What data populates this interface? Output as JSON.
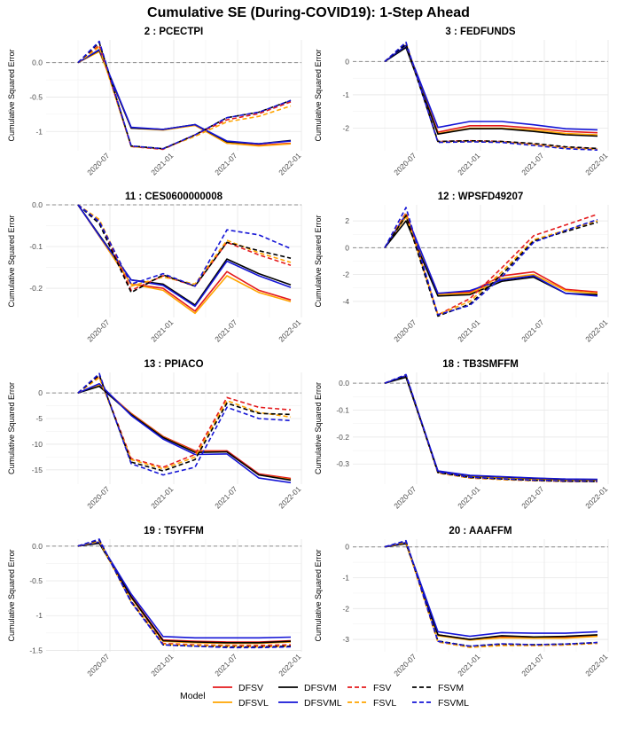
{
  "title": "Cumulative SE (During-COVID19): 1-Step Ahead",
  "ylabel": "Cumulative Squared Error",
  "legend_title": "Model",
  "models": [
    {
      "name": "DFSV",
      "color": "#e41a1c",
      "dash": false
    },
    {
      "name": "DFSVL",
      "color": "#ffa500",
      "dash": false
    },
    {
      "name": "DFSVM",
      "color": "#000000",
      "dash": false
    },
    {
      "name": "DFSVML",
      "color": "#1515d6",
      "dash": false
    },
    {
      "name": "FSV",
      "color": "#e41a1c",
      "dash": true
    },
    {
      "name": "FSVL",
      "color": "#ffa500",
      "dash": true
    },
    {
      "name": "FSVM",
      "color": "#000000",
      "dash": true
    },
    {
      "name": "FSVML",
      "color": "#1515d6",
      "dash": true
    }
  ],
  "chart_data": [
    {
      "type": "line",
      "title": "2 : PCECTPI",
      "x": [
        "2020-04",
        "2020-06",
        "2020-09",
        "2020-12",
        "2021-03",
        "2021-06",
        "2021-09",
        "2021-12"
      ],
      "xticks": [
        "2020-07",
        "2021-01",
        "2021-07",
        "2022-01"
      ],
      "yticks": [
        0.0,
        -0.5,
        -1.0
      ],
      "ylim": [
        -1.28,
        0.33
      ],
      "series": [
        {
          "name": "DFSV",
          "values": [
            0,
            0.17,
            -0.95,
            -0.97,
            -0.91,
            -1.17,
            -1.2,
            -1.17
          ]
        },
        {
          "name": "DFSVL",
          "values": [
            0,
            0.16,
            -0.95,
            -0.98,
            -0.91,
            -1.17,
            -1.21,
            -1.18
          ]
        },
        {
          "name": "DFSVM",
          "values": [
            0,
            0.18,
            -0.95,
            -0.97,
            -0.9,
            -1.15,
            -1.18,
            -1.13
          ]
        },
        {
          "name": "DFSVML",
          "values": [
            0,
            0.19,
            -0.94,
            -0.97,
            -0.9,
            -1.14,
            -1.18,
            -1.14
          ]
        },
        {
          "name": "FSV",
          "values": [
            0,
            0.25,
            -1.22,
            -1.26,
            -1.05,
            -0.83,
            -0.74,
            -0.57
          ]
        },
        {
          "name": "FSVL",
          "values": [
            0,
            0.23,
            -1.22,
            -1.25,
            -1.07,
            -0.86,
            -0.78,
            -0.63
          ]
        },
        {
          "name": "FSVM",
          "values": [
            0,
            0.29,
            -1.21,
            -1.25,
            -1.05,
            -0.8,
            -0.72,
            -0.55
          ]
        },
        {
          "name": "FSVML",
          "values": [
            0,
            0.31,
            -1.21,
            -1.25,
            -1.05,
            -0.8,
            -0.72,
            -0.55
          ]
        }
      ]
    },
    {
      "type": "line",
      "title": "3 : FEDFUNDS",
      "x": [
        "2020-04",
        "2020-06",
        "2020-09",
        "2020-12",
        "2021-03",
        "2021-06",
        "2021-09",
        "2021-12"
      ],
      "xticks": [
        "2020-07",
        "2021-01",
        "2021-07",
        "2022-01"
      ],
      "yticks": [
        0,
        -1,
        -2
      ],
      "ylim": [
        -2.68,
        0.65
      ],
      "series": [
        {
          "name": "DFSV",
          "values": [
            0,
            0.45,
            -2.12,
            -1.93,
            -1.93,
            -2.0,
            -2.1,
            -2.14
          ]
        },
        {
          "name": "DFSVL",
          "values": [
            0,
            0.45,
            -2.16,
            -2.0,
            -2.0,
            -2.05,
            -2.16,
            -2.2
          ]
        },
        {
          "name": "DFSVM",
          "values": [
            0,
            0.42,
            -2.18,
            -2.02,
            -2.02,
            -2.1,
            -2.2,
            -2.24
          ]
        },
        {
          "name": "DFSVML",
          "values": [
            0,
            0.48,
            -1.98,
            -1.8,
            -1.8,
            -1.9,
            -2.02,
            -2.05
          ]
        },
        {
          "name": "FSV",
          "values": [
            0,
            0.55,
            -2.4,
            -2.38,
            -2.4,
            -2.48,
            -2.58,
            -2.62
          ]
        },
        {
          "name": "FSVL",
          "values": [
            0,
            0.56,
            -2.42,
            -2.4,
            -2.42,
            -2.5,
            -2.6,
            -2.64
          ]
        },
        {
          "name": "FSVM",
          "values": [
            0,
            0.52,
            -2.4,
            -2.38,
            -2.4,
            -2.46,
            -2.56,
            -2.61
          ]
        },
        {
          "name": "FSVML",
          "values": [
            0,
            0.58,
            -2.43,
            -2.41,
            -2.43,
            -2.52,
            -2.62,
            -2.66
          ]
        }
      ]
    },
    {
      "type": "line",
      "title": "11 : CES0600000008",
      "x": [
        "2020-04",
        "2020-06",
        "2020-09",
        "2020-12",
        "2021-03",
        "2021-06",
        "2021-09",
        "2021-12"
      ],
      "xticks": [
        "2020-07",
        "2021-01",
        "2021-07",
        "2022-01"
      ],
      "yticks": [
        0.0,
        -0.1,
        -0.2
      ],
      "ylim": [
        -0.27,
        0.0
      ],
      "series": [
        {
          "name": "DFSV",
          "values": [
            0,
            -0.075,
            -0.19,
            -0.2,
            -0.255,
            -0.16,
            -0.205,
            -0.228
          ]
        },
        {
          "name": "DFSVL",
          "values": [
            0,
            -0.075,
            -0.19,
            -0.205,
            -0.26,
            -0.17,
            -0.21,
            -0.232
          ]
        },
        {
          "name": "DFSVM",
          "values": [
            0,
            -0.072,
            -0.18,
            -0.19,
            -0.24,
            -0.13,
            -0.165,
            -0.192
          ]
        },
        {
          "name": "DFSVML",
          "values": [
            0,
            -0.074,
            -0.18,
            -0.193,
            -0.243,
            -0.135,
            -0.17,
            -0.198
          ]
        },
        {
          "name": "FSV",
          "values": [
            0,
            -0.038,
            -0.205,
            -0.17,
            -0.195,
            -0.09,
            -0.12,
            -0.145
          ]
        },
        {
          "name": "FSVL",
          "values": [
            0,
            -0.035,
            -0.195,
            -0.173,
            -0.19,
            -0.085,
            -0.115,
            -0.138
          ]
        },
        {
          "name": "FSVM",
          "values": [
            0,
            -0.045,
            -0.21,
            -0.168,
            -0.195,
            -0.09,
            -0.11,
            -0.128
          ]
        },
        {
          "name": "FSVML",
          "values": [
            0,
            -0.04,
            -0.19,
            -0.165,
            -0.195,
            -0.06,
            -0.072,
            -0.105
          ]
        }
      ]
    },
    {
      "type": "line",
      "title": "12 : WPSFD49207",
      "x": [
        "2020-04",
        "2020-06",
        "2020-09",
        "2020-12",
        "2021-03",
        "2021-06",
        "2021-09",
        "2021-12"
      ],
      "xticks": [
        "2020-07",
        "2021-01",
        "2021-07",
        "2022-01"
      ],
      "yticks": [
        2,
        0,
        -2,
        -4
      ],
      "ylim": [
        -5.2,
        3.2
      ],
      "series": [
        {
          "name": "DFSV",
          "values": [
            0,
            2.4,
            -3.4,
            -3.3,
            -2.1,
            -1.8,
            -3.1,
            -3.3
          ]
        },
        {
          "name": "DFSVL",
          "values": [
            0,
            2.3,
            -3.5,
            -3.4,
            -2.3,
            -2.0,
            -3.2,
            -3.4
          ]
        },
        {
          "name": "DFSVM",
          "values": [
            0,
            2.0,
            -3.6,
            -3.5,
            -2.5,
            -2.2,
            -3.4,
            -3.5
          ]
        },
        {
          "name": "DFSVML",
          "values": [
            0,
            2.5,
            -3.4,
            -3.2,
            -2.4,
            -2.1,
            -3.4,
            -3.6
          ]
        },
        {
          "name": "FSV",
          "values": [
            0,
            2.6,
            -5.0,
            -3.8,
            -1.5,
            0.9,
            1.7,
            2.5
          ]
        },
        {
          "name": "FSVL",
          "values": [
            0,
            2.5,
            -5.0,
            -4.0,
            -1.8,
            0.6,
            1.3,
            2.0
          ]
        },
        {
          "name": "FSVM",
          "values": [
            0,
            2.4,
            -5.1,
            -4.2,
            -2.0,
            0.5,
            1.2,
            1.9
          ]
        },
        {
          "name": "FSVML",
          "values": [
            0,
            3.0,
            -5.0,
            -4.3,
            -2.2,
            0.4,
            1.3,
            2.1
          ]
        }
      ]
    },
    {
      "type": "line",
      "title": "13 : PPIACO",
      "x": [
        "2020-04",
        "2020-06",
        "2020-09",
        "2020-12",
        "2021-03",
        "2021-06",
        "2021-09",
        "2021-12"
      ],
      "xticks": [
        "2020-07",
        "2021-01",
        "2021-07",
        "2022-01"
      ],
      "yticks": [
        0,
        -5,
        -10,
        -15
      ],
      "ylim": [
        -17.8,
        4.0
      ],
      "series": [
        {
          "name": "DFSV",
          "values": [
            0,
            1.5,
            -4.0,
            -8.5,
            -11.3,
            -11.3,
            -15.8,
            -16.7
          ]
        },
        {
          "name": "DFSVL",
          "values": [
            0,
            1.5,
            -4.1,
            -8.6,
            -11.5,
            -11.5,
            -16.0,
            -16.9
          ]
        },
        {
          "name": "DFSVM",
          "values": [
            0,
            1.3,
            -4.2,
            -8.7,
            -11.6,
            -11.5,
            -16.0,
            -17.0
          ]
        },
        {
          "name": "DFSVML",
          "values": [
            0,
            1.8,
            -4.4,
            -9.0,
            -12.0,
            -11.9,
            -16.6,
            -17.5
          ]
        },
        {
          "name": "FSV",
          "values": [
            0,
            3.3,
            -12.8,
            -14.5,
            -12.0,
            -0.9,
            -2.8,
            -3.3
          ]
        },
        {
          "name": "FSVL",
          "values": [
            0,
            3.0,
            -13.0,
            -14.8,
            -12.5,
            -1.5,
            -3.8,
            -4.7
          ]
        },
        {
          "name": "FSVM",
          "values": [
            0,
            3.5,
            -13.5,
            -15.2,
            -13.0,
            -2.0,
            -4.0,
            -4.2
          ]
        },
        {
          "name": "FSVML",
          "values": [
            0,
            3.8,
            -13.8,
            -16.0,
            -14.5,
            -2.8,
            -5.0,
            -5.4
          ]
        }
      ]
    },
    {
      "type": "line",
      "title": "18 : TB3SMFFM",
      "x": [
        "2020-04",
        "2020-06",
        "2020-09",
        "2020-12",
        "2021-03",
        "2021-06",
        "2021-09",
        "2021-12"
      ],
      "xticks": [
        "2020-07",
        "2021-01",
        "2021-07",
        "2022-01"
      ],
      "yticks": [
        0.0,
        -0.1,
        -0.2,
        -0.3
      ],
      "ylim": [
        -0.375,
        0.04
      ],
      "series": [
        {
          "name": "DFSV",
          "values": [
            0,
            0.025,
            -0.328,
            -0.345,
            -0.35,
            -0.355,
            -0.358,
            -0.36
          ]
        },
        {
          "name": "DFSVL",
          "values": [
            0,
            0.025,
            -0.33,
            -0.347,
            -0.352,
            -0.357,
            -0.36,
            -0.361
          ]
        },
        {
          "name": "DFSVM",
          "values": [
            0,
            0.022,
            -0.327,
            -0.343,
            -0.348,
            -0.353,
            -0.357,
            -0.358
          ]
        },
        {
          "name": "DFSVML",
          "values": [
            0,
            0.028,
            -0.326,
            -0.342,
            -0.347,
            -0.352,
            -0.356,
            -0.357
          ]
        },
        {
          "name": "FSV",
          "values": [
            0,
            0.03,
            -0.333,
            -0.352,
            -0.358,
            -0.362,
            -0.365,
            -0.366
          ]
        },
        {
          "name": "FSVL",
          "values": [
            0,
            0.028,
            -0.334,
            -0.352,
            -0.358,
            -0.362,
            -0.365,
            -0.366
          ]
        },
        {
          "name": "FSVM",
          "values": [
            0,
            0.026,
            -0.332,
            -0.35,
            -0.356,
            -0.361,
            -0.364,
            -0.365
          ]
        },
        {
          "name": "FSVML",
          "values": [
            0,
            0.032,
            -0.33,
            -0.349,
            -0.355,
            -0.36,
            -0.363,
            -0.364
          ]
        }
      ]
    },
    {
      "type": "line",
      "title": "19 : T5YFFM",
      "x": [
        "2020-04",
        "2020-06",
        "2020-09",
        "2020-12",
        "2021-03",
        "2021-06",
        "2021-09",
        "2021-12"
      ],
      "xticks": [
        "2020-07",
        "2021-01",
        "2021-07",
        "2022-01"
      ],
      "yticks": [
        0.0,
        -0.5,
        -1.0,
        -1.5
      ],
      "ylim": [
        -1.52,
        0.1
      ],
      "series": [
        {
          "name": "DFSV",
          "values": [
            0,
            0.05,
            -0.72,
            -1.35,
            -1.37,
            -1.38,
            -1.38,
            -1.36
          ]
        },
        {
          "name": "DFSVL",
          "values": [
            0,
            0.05,
            -0.74,
            -1.37,
            -1.39,
            -1.4,
            -1.4,
            -1.38
          ]
        },
        {
          "name": "DFSVM",
          "values": [
            0,
            0.04,
            -0.73,
            -1.36,
            -1.38,
            -1.39,
            -1.39,
            -1.37
          ]
        },
        {
          "name": "DFSVML",
          "values": [
            0,
            0.06,
            -0.69,
            -1.3,
            -1.32,
            -1.32,
            -1.32,
            -1.31
          ]
        },
        {
          "name": "FSV",
          "values": [
            0,
            0.08,
            -0.79,
            -1.4,
            -1.42,
            -1.43,
            -1.43,
            -1.42
          ]
        },
        {
          "name": "FSVL",
          "values": [
            0,
            0.07,
            -0.8,
            -1.41,
            -1.43,
            -1.44,
            -1.45,
            -1.44
          ]
        },
        {
          "name": "FSVM",
          "values": [
            0,
            0.09,
            -0.8,
            -1.42,
            -1.44,
            -1.45,
            -1.45,
            -1.44
          ]
        },
        {
          "name": "FSVML",
          "values": [
            0,
            0.1,
            -0.81,
            -1.42,
            -1.44,
            -1.46,
            -1.46,
            -1.45
          ]
        }
      ]
    },
    {
      "type": "line",
      "title": "20 : AAAFFM",
      "x": [
        "2020-04",
        "2020-06",
        "2020-09",
        "2020-12",
        "2021-03",
        "2021-06",
        "2021-09",
        "2021-12"
      ],
      "xticks": [
        "2020-07",
        "2021-01",
        "2021-07",
        "2022-01"
      ],
      "yticks": [
        0,
        -1,
        -2,
        -3
      ],
      "ylim": [
        -3.4,
        0.25
      ],
      "series": [
        {
          "name": "DFSV",
          "values": [
            0,
            0.12,
            -2.85,
            -3.0,
            -2.9,
            -2.92,
            -2.92,
            -2.88
          ]
        },
        {
          "name": "DFSVL",
          "values": [
            0,
            0.11,
            -2.88,
            -3.02,
            -2.95,
            -2.96,
            -2.96,
            -2.9
          ]
        },
        {
          "name": "DFSVM",
          "values": [
            0,
            0.1,
            -2.85,
            -3.0,
            -2.88,
            -2.92,
            -2.9,
            -2.85
          ]
        },
        {
          "name": "DFSVML",
          "values": [
            0,
            0.14,
            -2.75,
            -2.9,
            -2.78,
            -2.8,
            -2.8,
            -2.75
          ]
        },
        {
          "name": "FSV",
          "values": [
            0,
            0.15,
            -3.08,
            -3.25,
            -3.18,
            -3.2,
            -3.18,
            -3.12
          ]
        },
        {
          "name": "FSVL",
          "values": [
            0,
            0.14,
            -3.08,
            -3.26,
            -3.2,
            -3.2,
            -3.18,
            -3.13
          ]
        },
        {
          "name": "FSVM",
          "values": [
            0,
            0.18,
            -3.05,
            -3.22,
            -3.15,
            -3.17,
            -3.15,
            -3.1
          ]
        },
        {
          "name": "FSVML",
          "values": [
            0,
            0.2,
            -3.06,
            -3.22,
            -3.14,
            -3.17,
            -3.15,
            -3.1
          ]
        }
      ]
    }
  ]
}
